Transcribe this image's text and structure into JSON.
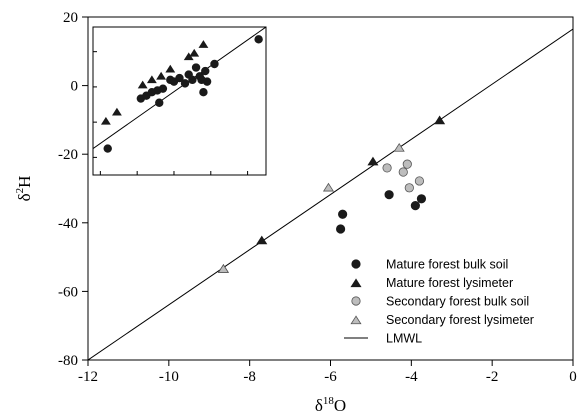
{
  "chart_data": {
    "type": "scatter",
    "xlabel": {
      "base": "δ",
      "sup": "18",
      "tail": "O"
    },
    "ylabel": {
      "base": "δ",
      "sup": "2",
      "tail": "H"
    },
    "xlim": [
      -12,
      0
    ],
    "ylim": [
      -80,
      20
    ],
    "x_ticks": [
      -12,
      -10,
      -8,
      -6,
      -4,
      -2,
      0
    ],
    "y_ticks": [
      -80,
      -60,
      -40,
      -20,
      0,
      20
    ],
    "grid": false,
    "legend_position": "bottom-right",
    "colors": {
      "mature": "#1a1a1a",
      "secondary_fill": "#bdbdbd",
      "secondary_stroke": "#555555",
      "line": "#000000"
    },
    "series": [
      {
        "name": "Mature forest bulk soil",
        "marker": "circle",
        "points": [
          [
            -10.8,
            -17.5
          ],
          [
            -5.7,
            -37.5
          ],
          [
            -5.75,
            -41.8
          ],
          [
            -4.55,
            -31.8
          ],
          [
            -3.9,
            -35.0
          ],
          [
            -3.75,
            -33.0
          ]
        ]
      },
      {
        "name": "Mature forest lysimeter",
        "marker": "triangle",
        "points": [
          [
            -10.6,
            -7.0
          ],
          [
            -7.7,
            -45.2
          ],
          [
            -4.95,
            -22.2
          ],
          [
            -3.3,
            -10.2
          ],
          [
            -8.65,
            -53.5
          ]
        ]
      },
      {
        "name": "Secondary forest bulk soil",
        "marker": "circle",
        "points": [
          [
            -4.6,
            -24.0
          ],
          [
            -4.2,
            -25.2
          ],
          [
            -4.1,
            -22.9
          ],
          [
            -4.05,
            -29.8
          ],
          [
            -3.8,
            -27.8
          ]
        ]
      },
      {
        "name": "Secondary forest lysimeter",
        "marker": "triangle",
        "points": [
          [
            -6.05,
            -29.8
          ],
          [
            -4.3,
            -18.2
          ],
          [
            -8.65,
            -53.5
          ]
        ]
      },
      {
        "name": "LMWL",
        "marker": "line",
        "line": {
          "x1": -12,
          "y1": -80,
          "x2": 0,
          "y2": 16.5
        }
      }
    ],
    "inset": {
      "xlim": [
        -11.2,
        -6.5
      ],
      "ylim": [
        -25,
        17
      ],
      "x_minor_ticks": [
        -11,
        -10,
        -9,
        -8,
        -7
      ],
      "y_minor_ticks": [
        -20,
        -10,
        0,
        10
      ],
      "line": {
        "x1": -11.2,
        "y1": -17.5,
        "x2": -6.5,
        "y2": 17
      },
      "circles": [
        [
          -10.8,
          -17.5
        ],
        [
          -9.9,
          -3.3
        ],
        [
          -9.75,
          -2.5
        ],
        [
          -9.6,
          -1.5
        ],
        [
          -9.45,
          -1.0
        ],
        [
          -9.4,
          -4.5
        ],
        [
          -9.3,
          -0.5
        ],
        [
          -9.1,
          2.0
        ],
        [
          -9.0,
          1.5
        ],
        [
          -8.85,
          2.5
        ],
        [
          -8.7,
          1.0
        ],
        [
          -8.6,
          3.5
        ],
        [
          -8.5,
          2.0
        ],
        [
          -8.4,
          5.5
        ],
        [
          -8.3,
          3.0
        ],
        [
          -8.25,
          2.0
        ],
        [
          -8.2,
          -1.5
        ],
        [
          -8.15,
          4.5
        ],
        [
          -8.1,
          1.5
        ],
        [
          -7.9,
          6.5
        ],
        [
          -6.7,
          13.5
        ]
      ],
      "triangles": [
        [
          -10.85,
          -9.8
        ],
        [
          -10.55,
          -7.2
        ],
        [
          -9.85,
          0.5
        ],
        [
          -9.6,
          2.0
        ],
        [
          -9.35,
          3.0
        ],
        [
          -9.1,
          5.0
        ],
        [
          -8.6,
          8.5
        ],
        [
          -8.45,
          9.5
        ],
        [
          -8.2,
          12.0
        ]
      ]
    }
  }
}
